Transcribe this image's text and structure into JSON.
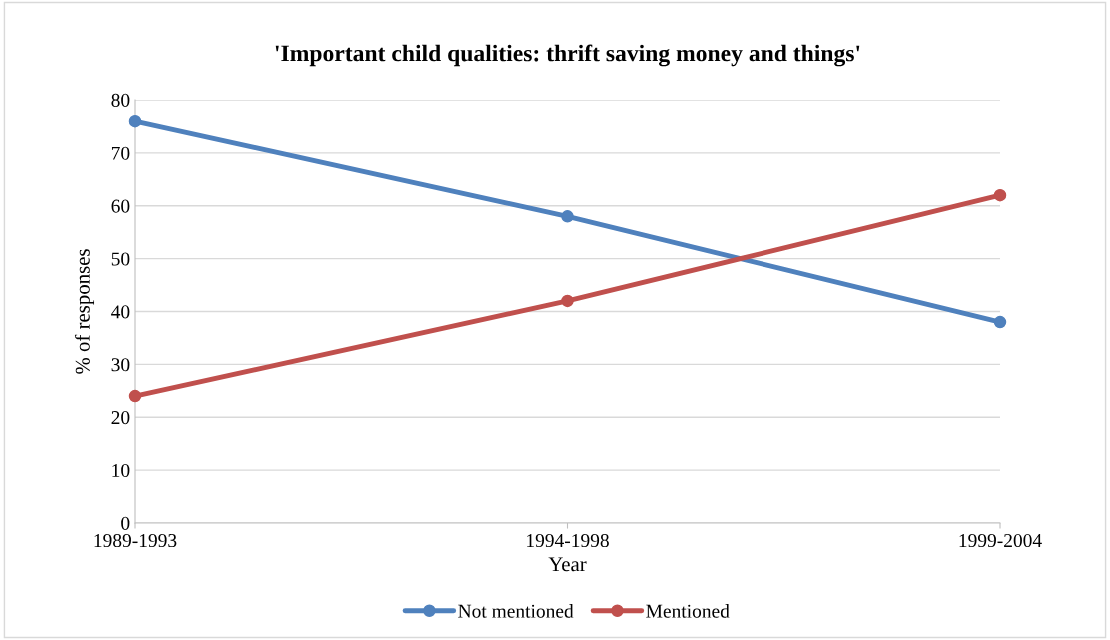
{
  "chart_data": {
    "type": "line",
    "title": "'Important child qualities: thrift saving money and things'",
    "xlabel": "Year",
    "ylabel": "% of responses",
    "categories": [
      "1989-1993",
      "1994-1998",
      "1999-2004"
    ],
    "series": [
      {
        "name": "Not mentioned",
        "color": "#4f81bd",
        "values": [
          76,
          58,
          38
        ]
      },
      {
        "name": "Mentioned",
        "color": "#c0504d",
        "values": [
          24,
          42,
          62
        ]
      }
    ],
    "ylim": [
      0,
      80
    ],
    "yticks": [
      0,
      10,
      20,
      30,
      40,
      50,
      60,
      70,
      80
    ],
    "grid": "y",
    "legend": "bottom",
    "marker": "circle",
    "line_style": "solid"
  }
}
